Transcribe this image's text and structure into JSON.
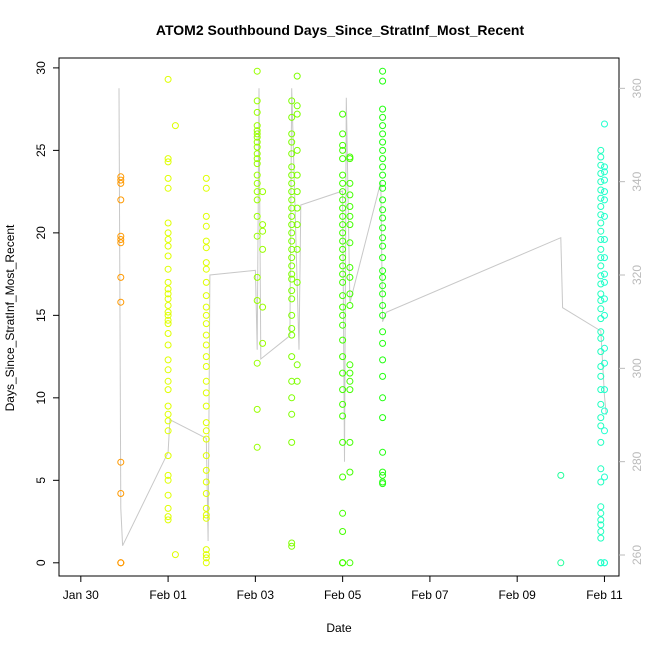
{
  "chart_data": {
    "type": "scatter",
    "title": "ATOM2 Southbound Days_Since_StratInf_Most_Recent",
    "xlabel": "Date",
    "ylabel": "Days_Since_StratInf_Most_Recent",
    "xlim": [
      "2017-01-29T12:00",
      "2017-02-11T08:00"
    ],
    "ylim": [
      -0.8,
      30.6
    ],
    "x_ticks": [
      {
        "value": "2017-01-30",
        "label": "Jan 30"
      },
      {
        "value": "2017-02-01",
        "label": "Feb 01"
      },
      {
        "value": "2017-02-03",
        "label": "Feb 03"
      },
      {
        "value": "2017-02-05",
        "label": "Feb 05"
      },
      {
        "value": "2017-02-07",
        "label": "Feb 07"
      },
      {
        "value": "2017-02-09",
        "label": "Feb 09"
      },
      {
        "value": "2017-02-11",
        "label": "Feb 11"
      }
    ],
    "y_ticks": [
      0,
      5,
      10,
      15,
      20,
      25,
      30
    ],
    "secondary_ylim": [
      255.5,
      366.5
    ],
    "secondary_y_ticks": [
      260,
      280,
      300,
      320,
      340,
      360
    ],
    "grid": false,
    "colors": {
      "scatter_start": "#f5a623",
      "scatter_end": "#22f0c8",
      "line": "#c8c8c8",
      "secondary_axis": "#bbbbbb"
    },
    "point_groups": [
      {
        "time": "2017-01-30T22:00",
        "color": "#ff9900",
        "values": [
          0,
          0,
          0,
          4.2,
          6.1,
          15.8,
          17.3,
          19.4,
          19.6,
          19.8,
          22.0,
          23.0,
          23.2,
          23.4
        ]
      },
      {
        "time": "2017-02-01T00:00",
        "color": "#dfff00",
        "values": [
          2.6,
          2.8,
          3.3,
          4.1,
          5.0,
          5.3,
          6.5,
          8.0,
          8.6,
          9.0,
          9.5,
          10.5,
          11.0,
          11.7,
          12.3,
          13.2,
          13.9,
          14.5,
          14.7,
          15.0,
          15.2,
          15.6,
          16.0,
          16.3,
          16.6,
          17.0,
          17.8,
          18.6,
          19.2,
          19.6,
          20.0,
          20.6,
          22.7,
          23.3,
          24.3,
          24.5,
          29.3
        ]
      },
      {
        "time": "2017-02-01T04:00",
        "color": "#dfff00",
        "values": [
          0.5,
          26.5
        ]
      },
      {
        "time": "2017-02-01T21:00",
        "color": "#dfff00",
        "values": [
          0,
          0.3,
          0.5,
          0.8,
          2.7,
          2.9,
          3.3,
          4.2,
          4.9,
          5.6,
          6.5,
          7.5,
          8.0,
          8.5,
          9.5,
          10.3,
          11.0,
          11.9,
          12.5,
          13.2,
          13.8,
          14.5,
          15.0,
          15.5,
          16.2,
          17.0,
          17.8,
          18.2,
          19.1,
          19.5,
          20.4,
          21.0,
          22.7,
          23.3
        ]
      },
      {
        "time": "2017-02-03T01:00",
        "color": "#99ff00",
        "values": [
          7.0,
          9.3,
          12.1,
          15.9,
          17.3,
          19.8,
          21.0,
          22.0,
          22.5,
          23.0,
          23.5,
          24.2,
          24.5,
          24.8,
          25.2,
          25.5,
          25.8,
          26.0,
          26.2,
          26.5,
          27.3,
          28.0,
          29.8
        ]
      },
      {
        "time": "2017-02-03T04:00",
        "color": "#99ff00",
        "values": [
          13.3,
          15.5,
          19.0,
          20.1,
          20.5,
          22.5
        ]
      },
      {
        "time": "2017-02-03T20:00",
        "color": "#7fff00",
        "values": [
          1.0,
          1.2,
          7.3,
          9.0,
          10.0,
          11.0,
          12.5,
          13.8,
          14.2,
          15.0,
          16.0,
          16.5,
          17.2,
          17.5,
          18.0,
          18.5,
          19.0,
          19.5,
          20.0,
          20.5,
          21.0,
          21.5,
          22.0,
          22.5,
          23.0,
          23.5,
          24.0,
          24.8,
          25.5,
          26.0,
          27.0,
          28.0
        ]
      },
      {
        "time": "2017-02-03T23:00",
        "color": "#7fff00",
        "values": [
          11.0,
          12.0,
          17.0,
          19.0,
          20.5,
          21.5,
          22.5,
          23.5,
          25.0,
          27.2,
          27.7,
          29.5
        ]
      },
      {
        "time": "2017-02-05T00:00",
        "color": "#44ff00",
        "values": [
          0,
          0,
          0,
          0,
          1.9,
          3.0,
          5.2,
          7.3,
          8.9,
          9.6,
          10.5,
          11.5,
          12.5,
          13.5,
          14.4,
          15.0,
          15.5,
          16.2,
          17.0,
          17.5,
          18.0,
          18.5,
          19.0,
          19.5,
          20.0,
          20.5,
          21.0,
          21.5,
          22.0,
          22.5,
          23.0,
          23.5,
          24.5,
          25.0,
          25.3,
          26.0,
          27.2
        ]
      },
      {
        "time": "2017-02-05T04:00",
        "color": "#44ff00",
        "values": [
          0,
          5.5,
          7.3,
          10.5,
          11.0,
          11.5,
          12.0,
          15.6,
          16.3,
          17.3,
          17.9,
          19.4,
          20.5,
          21.0,
          21.6,
          22.3,
          23.0,
          24.5,
          24.6
        ]
      },
      {
        "time": "2017-02-05T22:00",
        "color": "#22ff11",
        "values": [
          4.8,
          4.9,
          5.3,
          5.5,
          6.7,
          8.8,
          10.0,
          11.3,
          12.3,
          13.3,
          14.0,
          15.0,
          15.6,
          16.3,
          16.8,
          17.3,
          17.7,
          18.5,
          19.2,
          19.7,
          20.3,
          20.9,
          21.4,
          22.0,
          22.7,
          23.0,
          23.5,
          24.0,
          24.5,
          25.0,
          25.5,
          26.0,
          26.5,
          27.0,
          27.5,
          29.2,
          29.8
        ]
      },
      {
        "time": "2017-02-10T00:00",
        "color": "#20ff9a",
        "values": [
          0,
          5.3
        ]
      },
      {
        "time": "2017-02-10T22:00",
        "color": "#20ffc0",
        "values": [
          0,
          0,
          0,
          1.5,
          1.9,
          2.3,
          2.6,
          3.0,
          3.4,
          4.9,
          5.7,
          7.3,
          8.3,
          8.8,
          9.6,
          10.5,
          11.3,
          11.9,
          12.8,
          13.6,
          14.0,
          14.8,
          15.4,
          15.9,
          16.3,
          16.9,
          17.4,
          18.0,
          18.5,
          19.0,
          19.6,
          20.1,
          20.6,
          21.1,
          21.6,
          22.1,
          22.6,
          23.1,
          23.6,
          24.1,
          24.6,
          25.0
        ]
      },
      {
        "time": "2017-02-11T00:00",
        "color": "#20ffd0",
        "values": [
          0,
          0,
          5.2,
          8.0,
          9.2,
          10.5,
          12.1,
          13.0,
          15.0,
          16.0,
          17.0,
          17.5,
          18.5,
          19.6,
          21.0,
          22.0,
          22.5,
          23.2,
          23.7,
          24.0,
          26.6
        ]
      }
    ],
    "secondary_series": {
      "name": "",
      "axis": "right",
      "x": [
        "2017-01-30T21:00",
        "2017-01-30T22:00",
        "2017-01-30T23:00",
        "2017-02-01T00:00",
        "2017-02-01T01:00",
        "2017-02-01T21:00",
        "2017-02-01T22:00",
        "2017-02-01T23:00",
        "2017-02-03T00:00",
        "2017-02-03T01:00",
        "2017-02-03T02:00",
        "2017-02-03T03:00",
        "2017-02-03T19:00",
        "2017-02-03T20:00",
        "2017-02-04T00:00",
        "2017-02-04T01:00",
        "2017-02-05T00:00",
        "2017-02-05T01:00",
        "2017-02-05T02:00",
        "2017-02-05T04:00",
        "2017-02-05T21:00",
        "2017-02-05T22:00",
        "2017-02-06T00:00",
        "2017-02-10T00:00",
        "2017-02-10T01:00",
        "2017-02-10T22:00",
        "2017-02-11T00:00",
        "2017-02-11T01:00"
      ],
      "y": [
        360,
        270,
        262,
        282,
        289,
        285,
        263,
        320,
        321,
        304,
        360,
        302,
        307,
        360,
        304,
        335,
        338,
        280,
        358,
        314,
        340,
        310,
        312,
        328,
        313,
        308,
        294,
        290
      ]
    }
  }
}
